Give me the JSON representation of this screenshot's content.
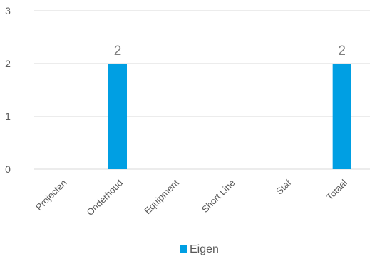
{
  "chart_data": {
    "type": "bar",
    "categories": [
      "Projecten",
      "Onderhoud",
      "Equipment",
      "Short Line",
      "Staf",
      "Totaal"
    ],
    "series": [
      {
        "name": "Eigen",
        "values": [
          0,
          2,
          0,
          0,
          0,
          2
        ]
      }
    ],
    "data_labels": [
      "",
      "2",
      "",
      "",
      "",
      "2"
    ],
    "y_ticks": [
      "0",
      "1",
      "2",
      "3"
    ],
    "ylim": [
      0,
      3
    ],
    "title": "",
    "xlabel": "",
    "ylabel": "",
    "grid": true,
    "legend_position": "bottom",
    "colors": {
      "bar": "#009fe3",
      "grid": "#d9d9d9",
      "text": "#595959",
      "data_label": "#7f7f7f"
    }
  }
}
